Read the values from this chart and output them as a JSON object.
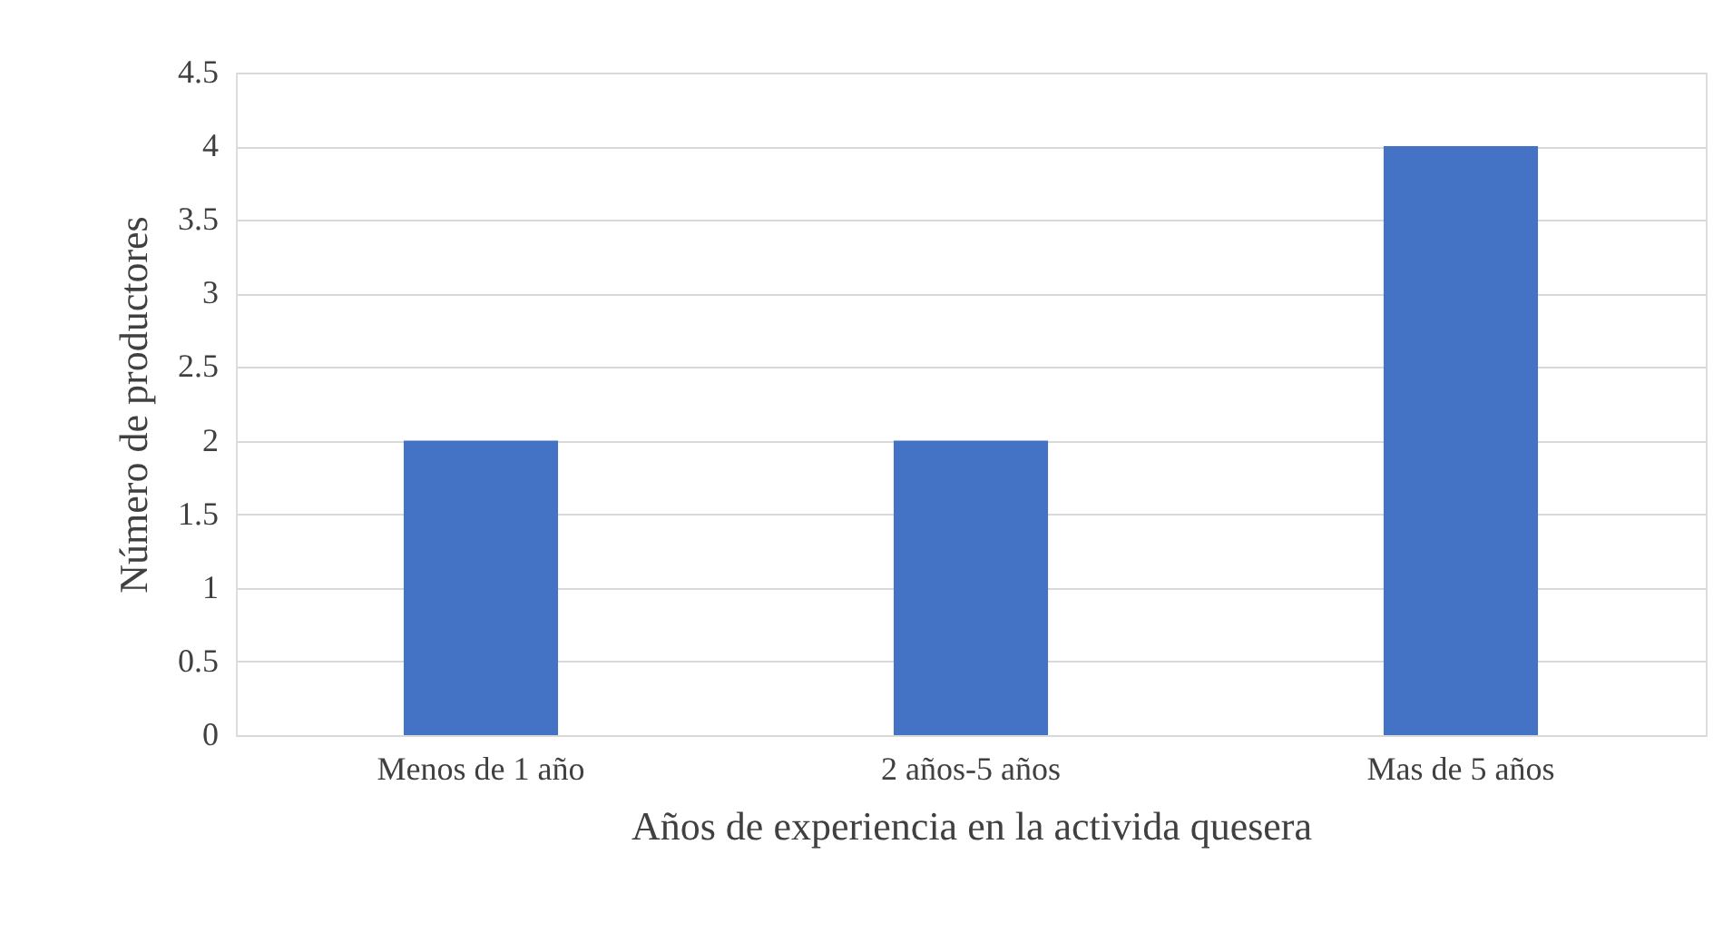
{
  "chart_data": {
    "type": "bar",
    "xlabel": "Años de experiencia en la activida quesera",
    "ylabel": "Número de productores",
    "categories": [
      "Menos de 1 año",
      "2 años-5 años",
      "Mas de 5 años"
    ],
    "values": [
      2,
      2,
      4
    ],
    "color": "#4472c4",
    "ylim": [
      0,
      4.5
    ],
    "yticks": [
      0,
      0.5,
      1,
      1.5,
      2,
      2.5,
      3,
      3.5,
      4,
      4.5
    ],
    "grid": "y"
  }
}
